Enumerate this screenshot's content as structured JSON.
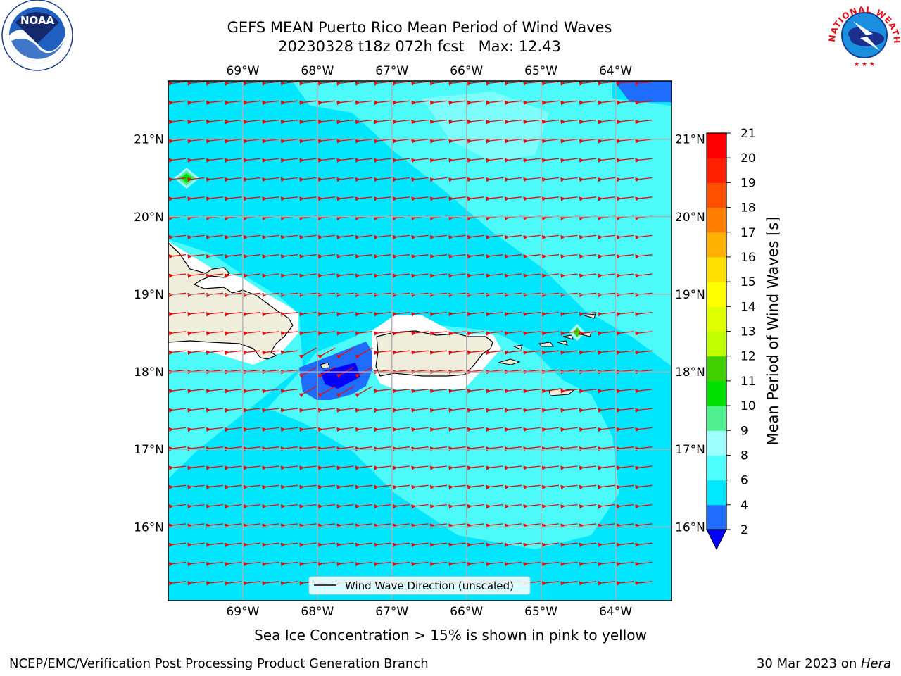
{
  "header": {
    "title_line1": "GEFS MEAN Puerto Rico Mean Period of Wind Waves",
    "title_line2": "20230328 t18z 072h fcst   Max: 12.43"
  },
  "logos": {
    "left": {
      "icon": "noaa-logo",
      "text": "NOAA"
    },
    "right": {
      "icon": "national-weather-service-logo",
      "text": "NATIONAL WEATHER SERVICE"
    }
  },
  "map": {
    "lon_labels": [
      "69°W",
      "68°W",
      "67°W",
      "66°W",
      "65°W",
      "64°W"
    ],
    "lat_labels": [
      "21°N",
      "20°N",
      "19°N",
      "18°N",
      "17°N",
      "16°N"
    ],
    "legend_label": "Wind Wave Direction (unscaled)",
    "arrow_color": "#e01010",
    "grid_color": "#b0b0b0",
    "land_color": "#efeedd",
    "lon_range": [
      -70,
      -63.25
    ],
    "lat_range": [
      15.05,
      21.75
    ]
  },
  "colorbar": {
    "label": "Mean Period of Wind Waves [s]",
    "ticks": [
      "2",
      "4",
      "6",
      "8",
      "9",
      "10",
      "11",
      "12",
      "13",
      "14",
      "15",
      "16",
      "17",
      "18",
      "19",
      "20",
      "21"
    ],
    "colors": [
      "#1f6dff",
      "#00e8ff",
      "#4dffff",
      "#a0ffff",
      "#50f090",
      "#00e000",
      "#40d000",
      "#c0ff00",
      "#e0ff00",
      "#ffff00",
      "#ffe000",
      "#ffb000",
      "#ff8000",
      "#ff5000",
      "#ff2000",
      "#ff0000"
    ],
    "under_color": "#0000ff"
  },
  "footer": {
    "ice_note": "Sea Ice Concentration > 15% is shown in pink to yellow",
    "left": "NCEP/EMC/Verification Post Processing Product Generation Branch",
    "right_prefix": "30 Mar 2023 on ",
    "right_machine": "Hera"
  }
}
